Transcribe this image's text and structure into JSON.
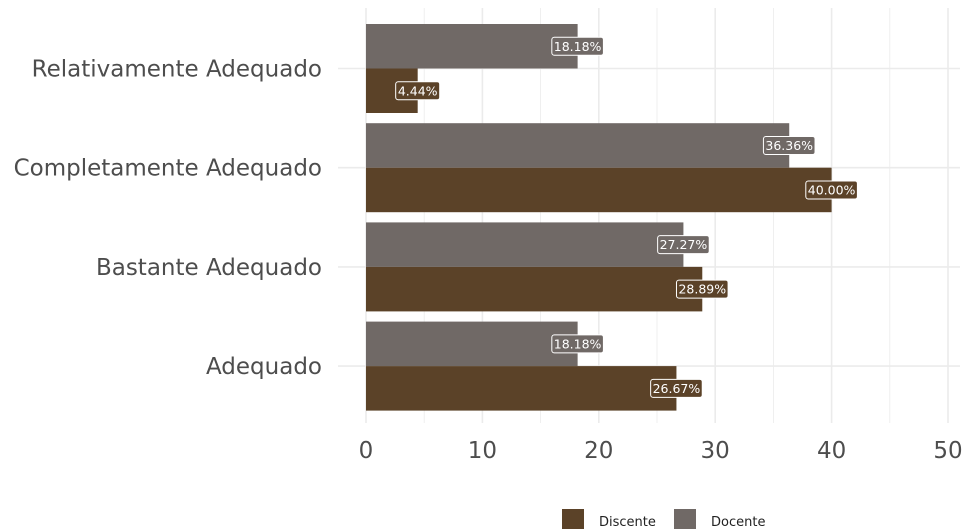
{
  "chart_data": {
    "type": "bar",
    "orientation": "horizontal",
    "categories": [
      "Adequado",
      "Bastante Adequado",
      "Completamente Adequado",
      "Relativamente Adequado"
    ],
    "series": [
      {
        "name": "Discente",
        "values": [
          26.67,
          28.89,
          40.0,
          4.44
        ],
        "labels": [
          "26.67%",
          "28.89%",
          "40.00%",
          "4.44%"
        ]
      },
      {
        "name": "Docente",
        "values": [
          18.18,
          27.27,
          36.36,
          18.18
        ],
        "labels": [
          "18.18%",
          "27.27%",
          "36.36%",
          "18.18%"
        ]
      }
    ],
    "xlim": [
      0,
      50
    ],
    "xticks": [
      0,
      10,
      20,
      30,
      40,
      50
    ],
    "title": "",
    "xlabel": "",
    "ylabel": "",
    "grid": true,
    "legend_position": "bottom",
    "colors": {
      "Discente": "#5b4228",
      "Docente": "#706966",
      "grid": "#ebebeb"
    }
  }
}
